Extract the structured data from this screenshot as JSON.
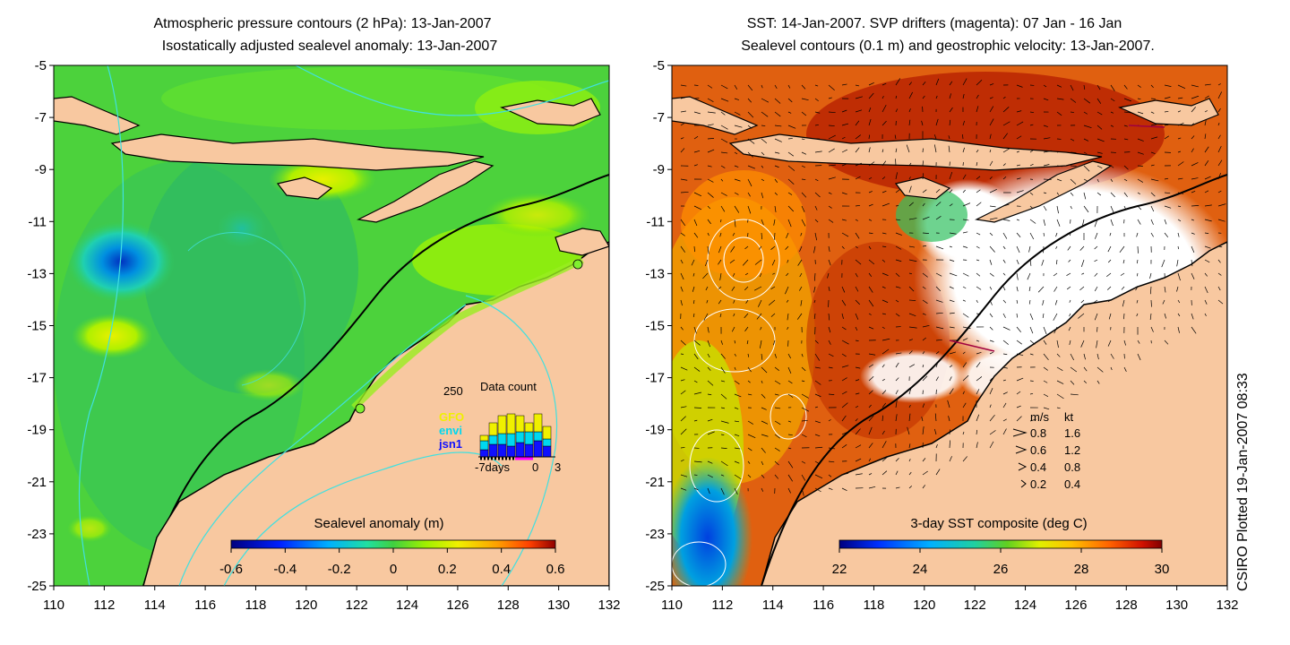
{
  "left_map": {
    "title_line1": "Atmospheric pressure contours (2 hPa): 13-Jan-2007",
    "title_line2": "Isostatically adjusted sealevel anomaly: 13-Jan-2007",
    "y_ticks": [
      "-5",
      "-7",
      "-9",
      "-11",
      "-13",
      "-15",
      "-17",
      "-19",
      "-21",
      "-23",
      "-25"
    ],
    "x_ticks": [
      "110",
      "112",
      "114",
      "116",
      "118",
      "120",
      "122",
      "124",
      "126",
      "128",
      "130",
      "132"
    ],
    "colorbar": {
      "label": "Sealevel anomaly (m)",
      "ticks": [
        "-0.6",
        "-0.4",
        "-0.2",
        "0",
        "0.2",
        "0.4",
        "0.6"
      ],
      "range": [
        -0.6,
        0.6
      ]
    },
    "data_count": {
      "label": "Data count",
      "y_max_label": "250",
      "axis_labels": [
        "-7days",
        "0",
        "3"
      ],
      "legend": [
        {
          "name": "GFO",
          "color": "#f0f000"
        },
        {
          "name": "envi",
          "color": "#00d8f0"
        },
        {
          "name": "jsn1",
          "color": "#1010ff"
        }
      ]
    }
  },
  "right_map": {
    "title_line1": "SST: 14-Jan-2007. SVP drifters (magenta): 07 Jan - 16 Jan",
    "title_line2": "Sealevel contours (0.1 m) and geostrophic velocity: 13-Jan-2007.",
    "y_ticks": [
      "-5",
      "-7",
      "-9",
      "-11",
      "-13",
      "-15",
      "-17",
      "-19",
      "-21",
      "-23",
      "-25"
    ],
    "x_ticks": [
      "110",
      "112",
      "114",
      "116",
      "118",
      "120",
      "122",
      "124",
      "126",
      "128",
      "130",
      "132"
    ],
    "colorbar": {
      "label": "3-day SST composite (deg C)",
      "ticks": [
        "22",
        "24",
        "26",
        "28",
        "30"
      ],
      "range": [
        22,
        30
      ]
    },
    "velocity_key": {
      "header_ms": "m/s",
      "header_kt": "kt",
      "rows": [
        {
          "ms": "0.8",
          "kt": "1.6"
        },
        {
          "ms": "0.6",
          "kt": "1.2"
        },
        {
          "ms": "0.4",
          "kt": "0.8"
        },
        {
          "ms": "0.2",
          "kt": "0.4"
        }
      ]
    }
  },
  "credit": "CSIRO Plotted 19-Jan-2007 08:33",
  "colors": {
    "land": "#f8c8a0",
    "coast": "#000000",
    "pressure_contour": "#40e0e0",
    "sst_contour": "#ffffff"
  }
}
